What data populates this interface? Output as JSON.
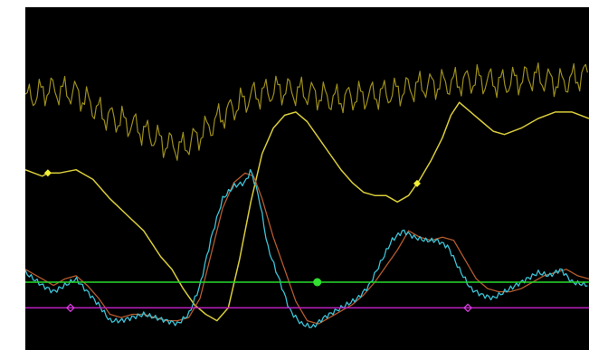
{
  "chart_data": {
    "type": "line",
    "title": "",
    "xlabel": "",
    "ylabel": "",
    "xlim": [
      0,
      100
    ],
    "ylim": [
      0,
      100
    ],
    "grid": false,
    "legend": "none",
    "background": "#000000",
    "series": [
      {
        "color": "#9c8e1c",
        "width": 1.2,
        "noise": {
          "amp": 3.6,
          "period": 2.1
        },
        "x": [
          0,
          4,
          9,
          14,
          19,
          25,
          28,
          31,
          35,
          40,
          45,
          50,
          55,
          60,
          65,
          70,
          75,
          80,
          85,
          90,
          95,
          100
        ],
        "y": [
          77,
          80,
          79,
          72,
          69,
          63,
          62,
          66,
          72,
          78,
          80,
          79,
          77,
          78,
          79,
          81,
          82,
          83,
          82,
          84,
          82,
          85
        ]
      },
      {
        "color": "#d8cc3a",
        "width": 1.5,
        "markers": [
          {
            "x": 4,
            "shape": "diamond",
            "color": "#f2ef35"
          },
          {
            "x": 69.5,
            "shape": "diamond",
            "color": "#f2ef35"
          }
        ],
        "x": [
          0,
          3,
          4,
          6,
          9,
          12,
          15,
          18,
          21,
          24,
          26,
          28,
          30,
          32,
          34,
          36,
          38,
          40,
          42,
          44,
          46,
          48,
          50,
          52,
          54,
          56,
          58,
          60,
          62,
          64,
          66,
          68,
          70,
          72,
          74,
          75.5,
          77,
          79,
          81,
          83,
          85,
          88,
          91,
          94,
          97,
          100
        ],
        "y": [
          55,
          53,
          54,
          54,
          55,
          52,
          46,
          41,
          36,
          28,
          24,
          18,
          13,
          10,
          8,
          12,
          27,
          45,
          60,
          68,
          72,
          73,
          70,
          65,
          60,
          55,
          51,
          48,
          47,
          47,
          45,
          47,
          52,
          58,
          65,
          72,
          76,
          73,
          70,
          67,
          66,
          68,
          71,
          73,
          73,
          71
        ]
      },
      {
        "color": "#b55b2e",
        "width": 1.3,
        "x": [
          0,
          3,
          5,
          7,
          9,
          11,
          13,
          15,
          17,
          19,
          21,
          23,
          25,
          27,
          29,
          31,
          33,
          35,
          37,
          39,
          40.5,
          42,
          44,
          46,
          48,
          50,
          52,
          54,
          56,
          58,
          60,
          62,
          64,
          66,
          68,
          70,
          72,
          74,
          76,
          78,
          80,
          82,
          84,
          86,
          88,
          90,
          92,
          94,
          96,
          98,
          100
        ],
        "y": [
          24,
          21,
          19,
          21,
          22,
          19,
          15,
          10,
          9,
          10,
          10,
          9,
          8,
          8,
          9,
          15,
          29,
          43,
          51,
          54,
          53,
          46,
          34,
          24,
          14,
          8,
          7,
          9,
          11,
          13,
          16,
          20,
          25,
          30,
          36,
          34,
          33,
          34,
          33,
          27,
          21,
          18,
          17,
          17,
          18,
          20,
          22,
          23,
          24,
          22,
          21
        ]
      },
      {
        "color": "#3cc2d6",
        "width": 1.3,
        "noise": {
          "amp": 1.7,
          "period": 0.7
        },
        "x": [
          0,
          3,
          5,
          7,
          9,
          11,
          13,
          15,
          17,
          19,
          21,
          23,
          25,
          27,
          29,
          31,
          33,
          35,
          37,
          39,
          40,
          41.5,
          43,
          45,
          47,
          49,
          51,
          53,
          55,
          57,
          59,
          61,
          63,
          65,
          67,
          69,
          71,
          73,
          75,
          77,
          79,
          81,
          83,
          85,
          87,
          89,
          91,
          93,
          95,
          97,
          100
        ],
        "y": [
          23,
          19,
          17,
          19,
          21,
          17,
          13,
          8,
          8,
          9,
          10,
          9,
          8,
          7,
          10,
          19,
          34,
          46,
          50,
          51,
          55,
          46,
          31,
          21,
          11,
          7,
          6,
          9,
          11,
          13,
          15,
          19,
          26,
          33,
          36,
          34,
          33,
          33,
          31,
          24,
          18,
          16,
          15,
          17,
          19,
          21,
          23,
          22,
          24,
          20,
          19
        ]
      },
      {
        "color": "#27d92a",
        "width": 1.5,
        "markers": [
          {
            "x": 51.8,
            "shape": "circle",
            "color": "#31e030"
          }
        ],
        "x": [
          0,
          100
        ],
        "y": [
          20,
          20
        ]
      },
      {
        "color": "#c01fc4",
        "width": 1.5,
        "markers": [
          {
            "x": 8,
            "shape": "open-diamond",
            "color": "#e040e8"
          },
          {
            "x": 78.5,
            "shape": "open-diamond",
            "color": "#e040e8"
          }
        ],
        "x": [
          0,
          100
        ],
        "y": [
          12,
          12
        ]
      }
    ]
  }
}
